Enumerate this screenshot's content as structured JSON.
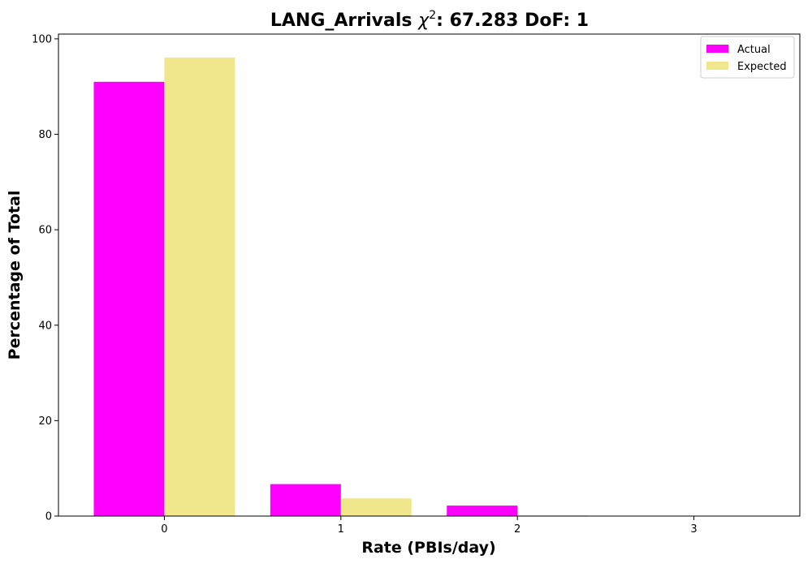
{
  "chart_data": {
    "type": "bar",
    "title_prefix": "LANG_Arrivals ",
    "title_chi": "χ",
    "title_sup": "2",
    "title_suffix": ": 67.283 DoF: 1",
    "xlabel": "Rate (PBIs/day)",
    "ylabel": "Percentage of Total",
    "categories": [
      "0",
      "1",
      "2",
      "3"
    ],
    "x": [
      0,
      1,
      2,
      3
    ],
    "xlim": [
      -0.6,
      3.6
    ],
    "ylim": [
      0,
      101
    ],
    "yticks": [
      0,
      20,
      40,
      60,
      80,
      100
    ],
    "grid": false,
    "legend_position": "top-right",
    "series": [
      {
        "name": "Actual",
        "color": "#ff00ff",
        "values": [
          91.0,
          6.7,
          2.2,
          0.0
        ]
      },
      {
        "name": "Expected",
        "color": "#f0e68c",
        "values": [
          96.1,
          3.7,
          0.15,
          0.0
        ]
      }
    ]
  }
}
